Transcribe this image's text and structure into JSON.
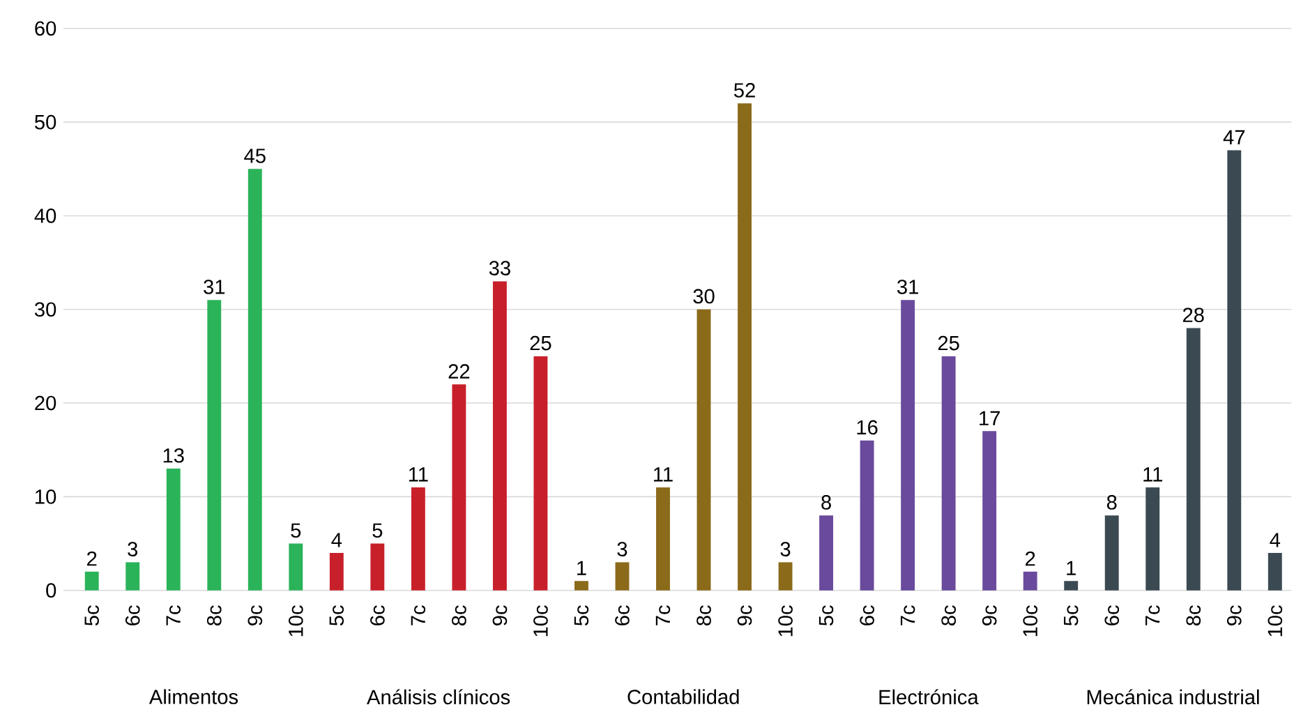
{
  "chart_data": {
    "type": "bar",
    "categories": [
      "5c",
      "6c",
      "7c",
      "8c",
      "9c",
      "10c",
      "5c",
      "6c",
      "7c",
      "8c",
      "9c",
      "10c",
      "5c",
      "6c",
      "7c",
      "8c",
      "9c",
      "10c",
      "5c",
      "6c",
      "7c",
      "8c",
      "9c",
      "10c",
      "5c",
      "6c",
      "7c",
      "8c",
      "9c",
      "10c"
    ],
    "series": [
      {
        "color": "#2bb35a",
        "values": [
          2,
          3,
          13,
          31,
          45,
          5,
          null,
          null,
          null,
          null,
          null,
          null,
          null,
          null,
          null,
          null,
          null,
          null,
          null,
          null,
          null,
          null,
          null,
          null,
          null,
          null,
          null,
          null,
          null,
          null
        ]
      },
      {
        "color": "#c8202a",
        "values": [
          null,
          null,
          null,
          null,
          null,
          null,
          4,
          5,
          11,
          22,
          33,
          25,
          null,
          null,
          null,
          null,
          null,
          null,
          null,
          null,
          null,
          null,
          null,
          null,
          null,
          null,
          null,
          null,
          null,
          null
        ]
      },
      {
        "color": "#8b6a1a",
        "values": [
          null,
          null,
          null,
          null,
          null,
          null,
          null,
          null,
          null,
          null,
          null,
          null,
          1,
          3,
          11,
          30,
          52,
          3,
          null,
          null,
          null,
          null,
          null,
          null,
          null,
          null,
          null,
          null,
          null,
          null
        ]
      },
      {
        "color": "#6a4a9c",
        "values": [
          null,
          null,
          null,
          null,
          null,
          null,
          null,
          null,
          null,
          null,
          null,
          null,
          null,
          null,
          null,
          null,
          null,
          null,
          8,
          16,
          31,
          25,
          17,
          2,
          null,
          null,
          null,
          null,
          null,
          null
        ]
      },
      {
        "color": "#3b4a52",
        "values": [
          null,
          null,
          null,
          null,
          null,
          null,
          null,
          null,
          null,
          null,
          null,
          null,
          null,
          null,
          null,
          null,
          null,
          null,
          null,
          null,
          null,
          null,
          null,
          null,
          1,
          8,
          11,
          28,
          47,
          4
        ]
      }
    ],
    "annotations": [
      "Alimentos",
      "Análisis clínicos",
      "Contabilidad",
      "Electrónica",
      "Mecánica industrial"
    ],
    "ylim": [
      0,
      60
    ],
    "yticks": [
      0,
      10,
      20,
      30,
      40,
      50,
      60
    ],
    "grid": "y",
    "data_labels": true
  }
}
